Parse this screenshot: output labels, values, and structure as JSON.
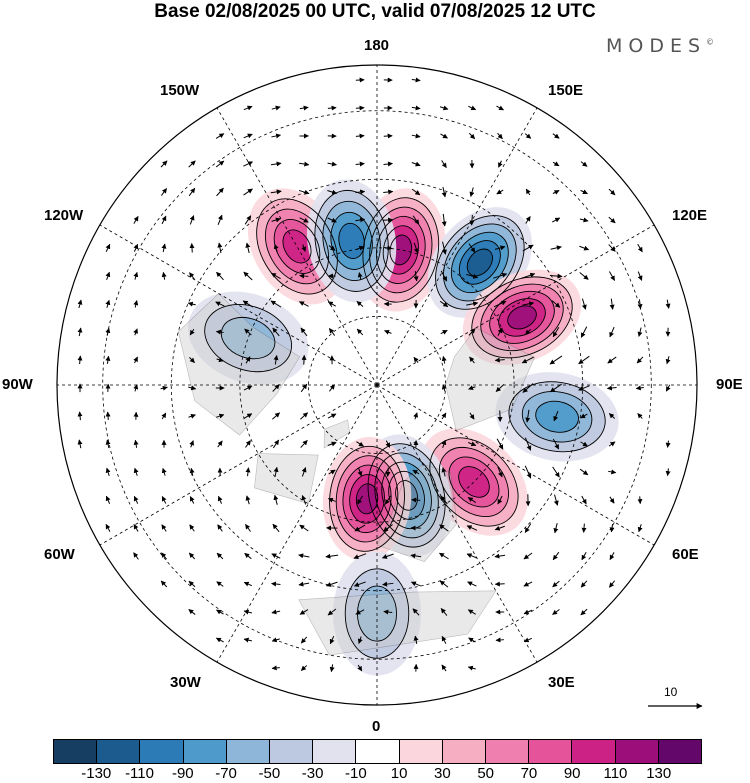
{
  "title": "Base 02/08/2025 00 UTC, valid 07/08/2025 12 UTC",
  "brand": {
    "name": "MODES",
    "mark": "©"
  },
  "map": {
    "projection": "north polar stereographic",
    "longitude_labels": {
      "top": "180",
      "top_right": "150E",
      "upper_right": "120E",
      "right": "90E",
      "lower_right": "60E",
      "bottom_right": "30E",
      "bottom": "0",
      "bottom_left": "30W",
      "lower_left": "60W",
      "left": "90W",
      "upper_left": "120W",
      "top_left": "150W"
    },
    "reference_vector_label": "10",
    "anomaly_centers": [
      {
        "sign": "positive",
        "value": 110,
        "lat": 60,
        "lon": 170
      },
      {
        "sign": "negative",
        "value": -110,
        "lat": 55,
        "lon": 140
      },
      {
        "sign": "positive",
        "value": 110,
        "lat": 55,
        "lon": 115
      },
      {
        "sign": "negative",
        "value": -70,
        "lat": 50,
        "lon": 80
      },
      {
        "sign": "positive",
        "value": 90,
        "lat": 60,
        "lon": 45
      },
      {
        "sign": "negative",
        "value": -110,
        "lat": 65,
        "lon": 15
      },
      {
        "sign": "positive",
        "value": 110,
        "lat": 65,
        "lon": 355
      },
      {
        "sign": "negative",
        "value": -50,
        "lat": 40,
        "lon": 0
      },
      {
        "sign": "positive",
        "value": 90,
        "lat": 55,
        "lon": 210
      },
      {
        "sign": "negative",
        "value": -90,
        "lat": 58,
        "lon": 190
      },
      {
        "sign": "negative",
        "value": -50,
        "lat": 60,
        "lon": 250
      }
    ]
  },
  "colorbar": {
    "colors": [
      "#163e63",
      "#1b5b8e",
      "#2c7bb6",
      "#4e9acb",
      "#8eb6d8",
      "#bdc9e0",
      "#e2e2ef",
      "#ffffff",
      "#fbd7dd",
      "#f6aec3",
      "#ef7fae",
      "#e5539b",
      "#cc2185",
      "#9c0f7b",
      "#63086a"
    ],
    "ticks": [
      "-130",
      "-110",
      "-90",
      "-70",
      "-50",
      "-30",
      "-10",
      "10",
      "30",
      "50",
      "70",
      "90",
      "110",
      "130"
    ]
  }
}
